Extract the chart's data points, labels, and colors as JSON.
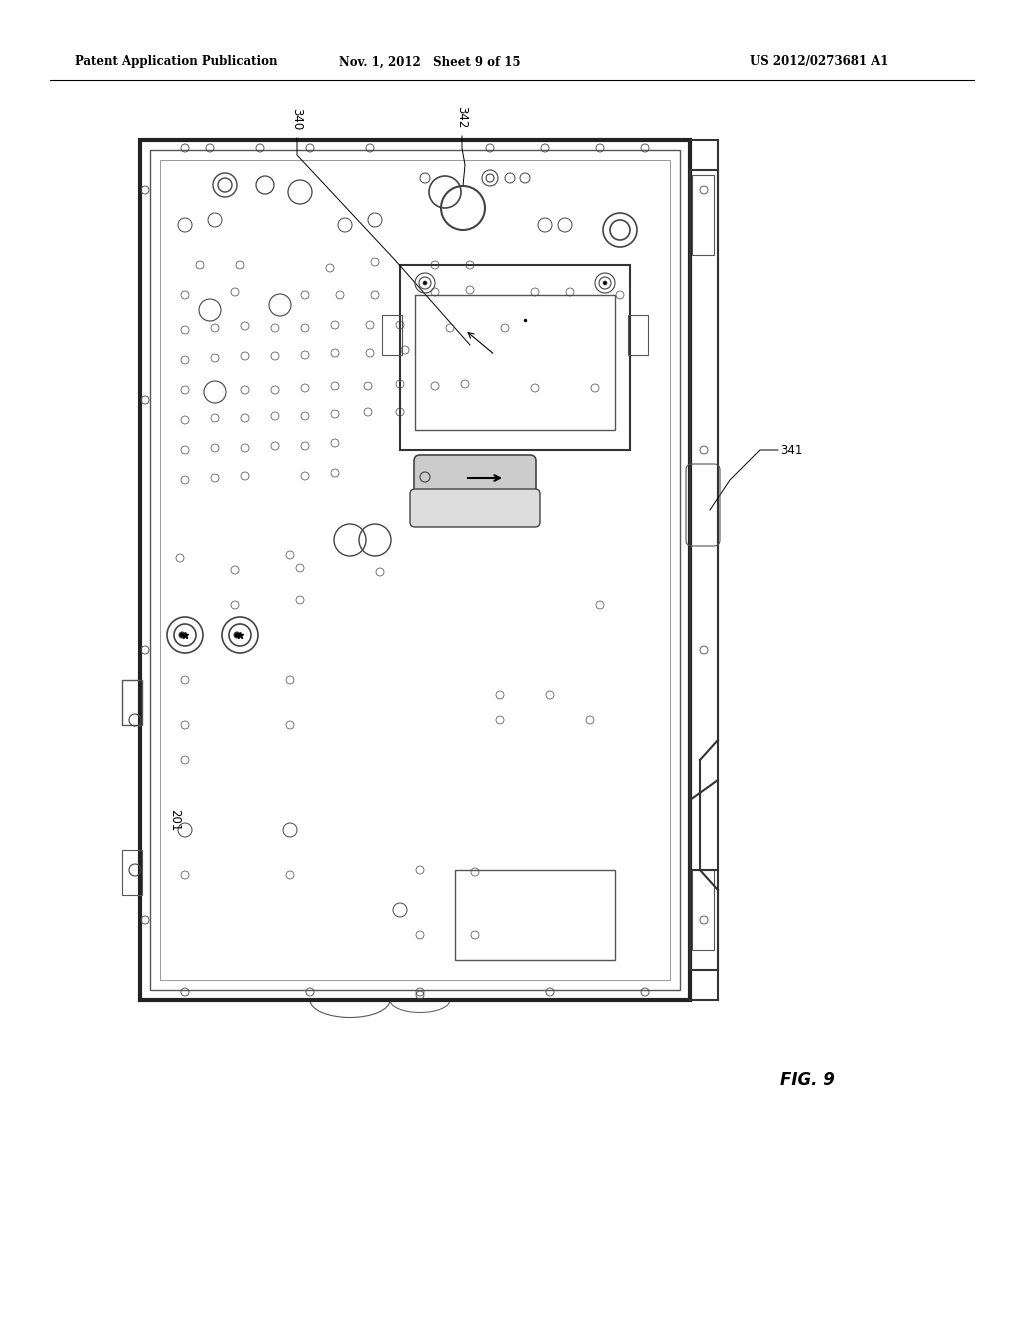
{
  "bg_color": "#ffffff",
  "title_left": "Patent Application Publication",
  "title_mid": "Nov. 1, 2012   Sheet 9 of 15",
  "title_right": "US 2012/0273681 A1",
  "fig_label": "FIG. 9",
  "label_201": "201",
  "label_340": "340",
  "label_341": "341",
  "label_342": "342",
  "lc": "#333333",
  "lc2": "#555555",
  "lc3": "#777777"
}
